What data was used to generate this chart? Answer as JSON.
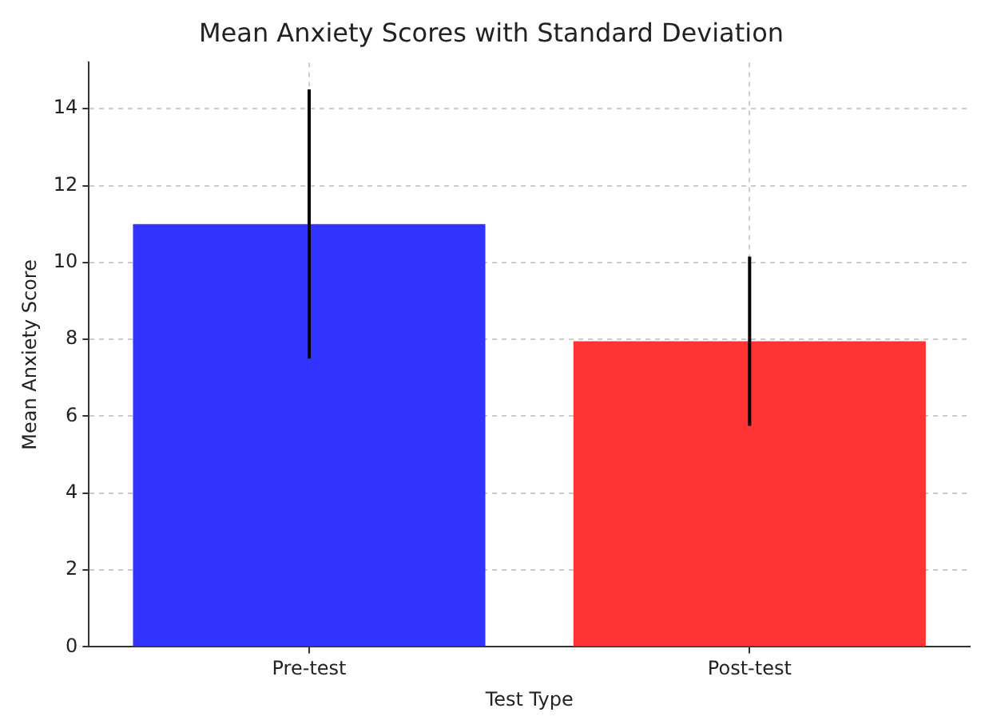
{
  "chart_data": {
    "type": "bar",
    "title": "Mean Anxiety Scores with Standard Deviation",
    "xlabel": "Test Type",
    "ylabel": "Mean Anxiety Score",
    "categories": [
      "Pre-test",
      "Post-test"
    ],
    "values": [
      11,
      7.95
    ],
    "colors": [
      "#3333ff",
      "#ff3333"
    ],
    "errors": [
      3.5,
      2.2
    ],
    "ylim": [
      0,
      15.2
    ],
    "yticks": [
      0,
      2,
      4,
      6,
      8,
      10,
      12,
      14
    ],
    "grid": true
  }
}
